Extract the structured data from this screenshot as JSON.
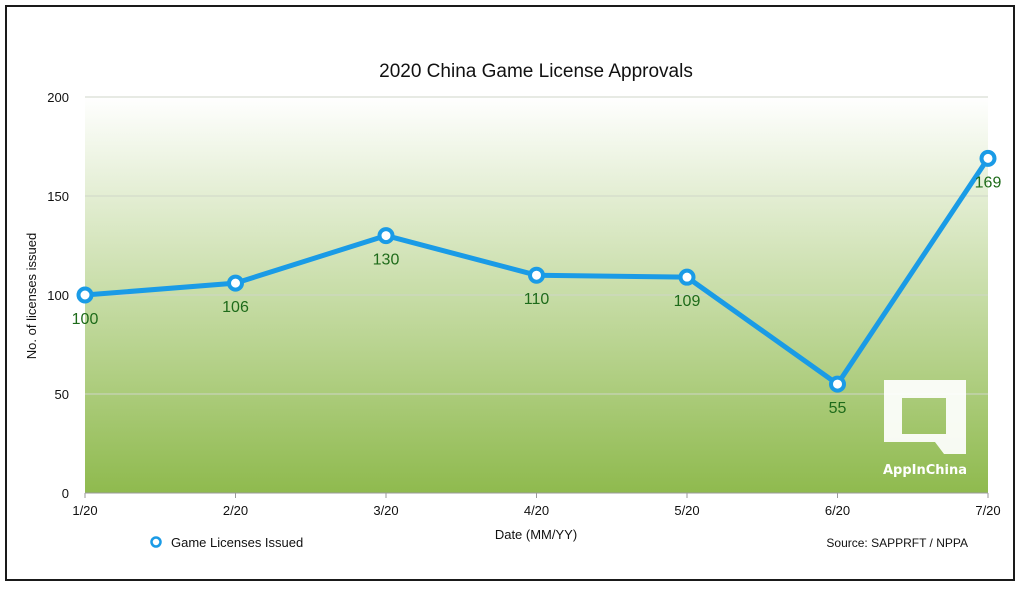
{
  "chart_data": {
    "type": "line",
    "title": "2020 China Game License Approvals",
    "xlabel": "Date (MM/YY)",
    "ylabel": "No. of licenses issued",
    "categories": [
      "1/20",
      "2/20",
      "3/20",
      "4/20",
      "5/20",
      "6/20",
      "7/20"
    ],
    "series": [
      {
        "name": "Game Licenses Issued",
        "values": [
          100,
          106,
          130,
          110,
          109,
          55,
          169
        ]
      }
    ],
    "ylim": [
      0,
      200
    ],
    "yticks": [
      0,
      50,
      100,
      150,
      200
    ],
    "grid": true,
    "legend": "bottom-left",
    "colors": {
      "line": "#1a9be6",
      "data_label": "#1e6b1a",
      "bg_top": "#ffffff",
      "bg_bottom": "#8fba4e"
    }
  },
  "source": "Source: SAPPRFT / NPPA",
  "logo": {
    "text": "AppInChina",
    "icon": "appinchina-logo-icon"
  }
}
